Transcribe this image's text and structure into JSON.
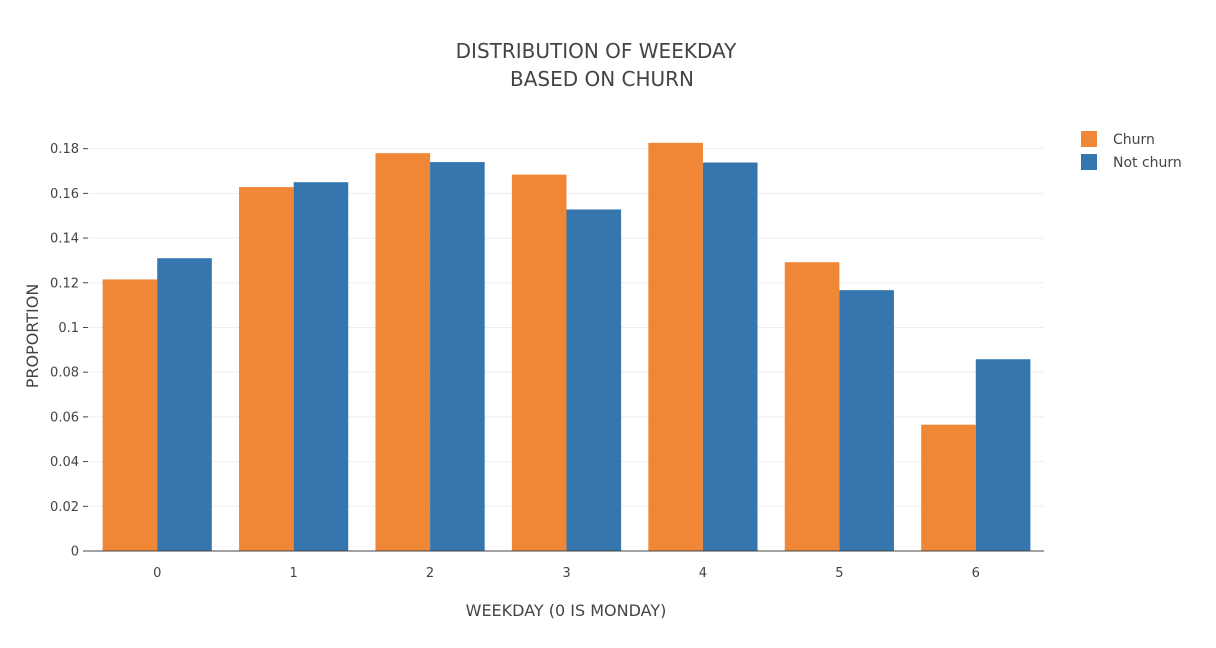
{
  "chart_data": {
    "type": "bar",
    "title_lines": [
      "DISTRIBUTION OF WEEKDAY",
      "BASED ON CHURN"
    ],
    "xlabel": "WEEKDAY (0 IS MONDAY)",
    "ylabel": "PROPORTION",
    "categories": [
      "0",
      "1",
      "2",
      "3",
      "4",
      "5",
      "6"
    ],
    "y_ticks": [
      0,
      0.02,
      0.04,
      0.06,
      0.08,
      0.1,
      0.12,
      0.14,
      0.16,
      0.18
    ],
    "y_tick_labels": [
      "0",
      "0.02",
      "0.04",
      "0.06",
      "0.08",
      "0.1",
      "0.12",
      "0.14",
      "0.16",
      "0.18"
    ],
    "ylim": [
      0,
      0.1803
    ],
    "grid": true,
    "legend_position": "top-right",
    "series": [
      {
        "name": "Churn",
        "color": "#F08737",
        "values": [
          0.1215,
          0.1628,
          0.178,
          0.1684,
          0.1826,
          0.1292,
          0.0565
        ]
      },
      {
        "name": "Not churn",
        "color": "#3676AE",
        "values": [
          0.131,
          0.165,
          0.174,
          0.1528,
          0.1738,
          0.1167,
          0.0858
        ]
      }
    ]
  }
}
